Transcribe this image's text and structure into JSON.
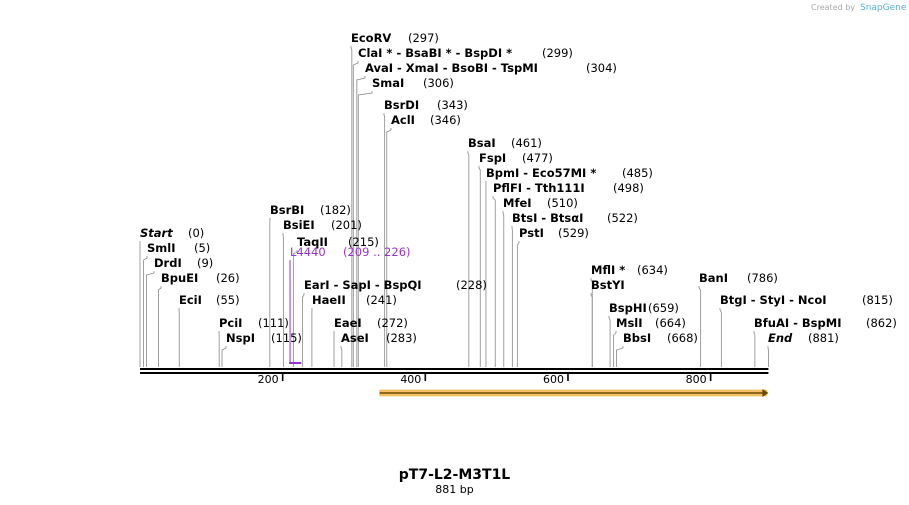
{
  "watermark": {
    "created_by": "Created by",
    "brand": "SnapGene"
  },
  "sequence": {
    "name": "pT7-L2-M3T1L",
    "length": 881,
    "length_label": "881 bp"
  },
  "axis": {
    "ticks": [
      200,
      400,
      600,
      800
    ]
  },
  "colors": {
    "feature": "#9933cc",
    "orf_fill": "#f5c26b",
    "orf_line": "#c88a00",
    "axis": "#000000",
    "leader": "#888888"
  },
  "feature": {
    "name": "L4440",
    "range_label": "(209 .. 226)",
    "start": 209,
    "end": 226
  },
  "orf": {
    "start": 336,
    "end": 881,
    "direction": "forward"
  },
  "sites": [
    {
      "name": "EcoRV",
      "pos_label": "(297)",
      "pos": 297
    },
    {
      "name": "ClaI * - BsaBI * - BspDI *",
      "pos_label": "(299)",
      "pos": 299
    },
    {
      "name": "AvaI - XmaI - BsoBI - TspMI",
      "pos_label": "(304)",
      "pos": 304
    },
    {
      "name": "SmaI",
      "pos_label": "(306)",
      "pos": 306
    },
    {
      "name": "BsrDI",
      "pos_label": "(343)",
      "pos": 343
    },
    {
      "name": "AclI",
      "pos_label": "(346)",
      "pos": 346
    },
    {
      "name": "BsaI",
      "pos_label": "(461)",
      "pos": 461
    },
    {
      "name": "FspI",
      "pos_label": "(477)",
      "pos": 477
    },
    {
      "name": "BpmI - Eco57MI *",
      "pos_label": "(485)",
      "pos": 485
    },
    {
      "name": "PflFI - Tth111I",
      "pos_label": "(498)",
      "pos": 498
    },
    {
      "name": "MfeI",
      "pos_label": "(510)",
      "pos": 510
    },
    {
      "name": "BtsI - BtsαI",
      "pos_label": "(522)",
      "pos": 522
    },
    {
      "name": "PstI",
      "pos_label": "(529)",
      "pos": 529
    },
    {
      "name": "BsrBI",
      "pos_label": "(182)",
      "pos": 182
    },
    {
      "name": "BsiEI",
      "pos_label": "(201)",
      "pos": 201
    },
    {
      "name": "TaqII",
      "pos_label": "(215)",
      "pos": 215
    },
    {
      "name": "EarI - SapI - BspQI",
      "pos_label": "(228)",
      "pos": 228
    },
    {
      "name": "HaeII",
      "pos_label": "(241)",
      "pos": 241
    },
    {
      "name": "EaeI",
      "pos_label": "(272)",
      "pos": 272
    },
    {
      "name": "AseI",
      "pos_label": "(283)",
      "pos": 283
    },
    {
      "name": "Start",
      "pos_label": "(0)",
      "pos": 0
    },
    {
      "name": "SmlI",
      "pos_label": "(5)",
      "pos": 5
    },
    {
      "name": "DrdI",
      "pos_label": "(9)",
      "pos": 9
    },
    {
      "name": "BpuEI",
      "pos_label": "(26)",
      "pos": 26
    },
    {
      "name": "EciI",
      "pos_label": "(55)",
      "pos": 55
    },
    {
      "name": "PciI",
      "pos_label": "(111)",
      "pos": 111
    },
    {
      "name": "NspI",
      "pos_label": "(115)",
      "pos": 115
    },
    {
      "name": "MflI *",
      "pos_label": "(634)",
      "pos": 634
    },
    {
      "name": "BstYI",
      "pos_label": "",
      "pos": 634
    },
    {
      "name": "BspHI",
      "pos_label": "(659)",
      "pos": 659
    },
    {
      "name": "MslI",
      "pos_label": "(664)",
      "pos": 664
    },
    {
      "name": "BbsI",
      "pos_label": "(668)",
      "pos": 668
    },
    {
      "name": "BanI",
      "pos_label": "(786)",
      "pos": 786
    },
    {
      "name": "BtgI - StyI - NcoI",
      "pos_label": "(815)",
      "pos": 815
    },
    {
      "name": "BfuAI - BspMI",
      "pos_label": "(862)",
      "pos": 862
    },
    {
      "name": "End",
      "pos_label": "(881)",
      "pos": 881
    }
  ]
}
